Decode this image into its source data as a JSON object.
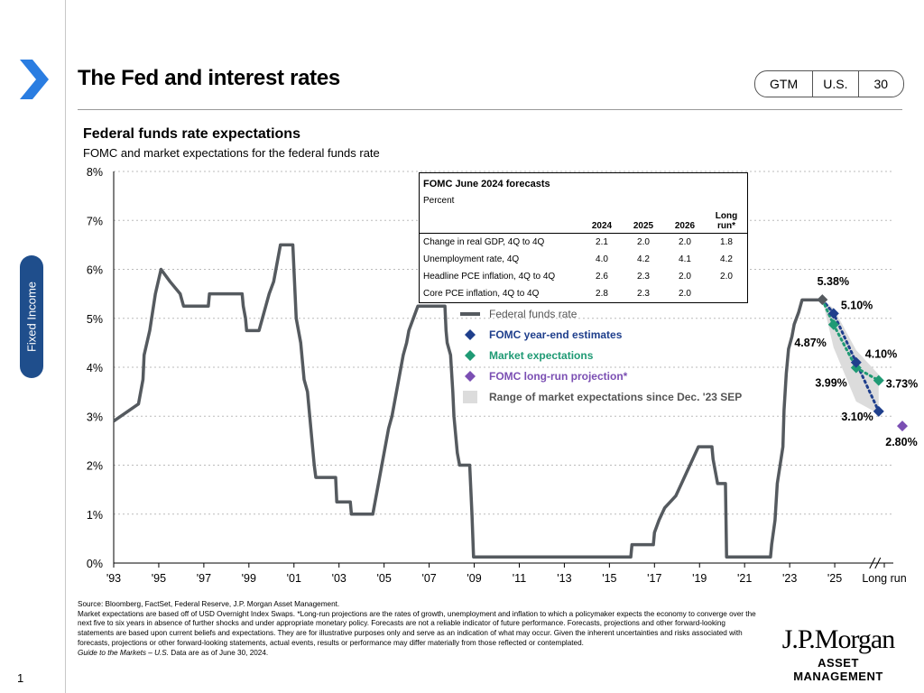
{
  "header": {
    "title": "The Fed and interest rates",
    "tags": [
      "GTM",
      "U.S.",
      "30"
    ],
    "side_tab": "Fixed Income",
    "page_number": "1"
  },
  "colors": {
    "fed_funds": "#555a5f",
    "fomc": "#1f3f8c",
    "market": "#1f9a74",
    "longrun": "#7b4fb3",
    "range": "#dcdcdc",
    "accent": "#1f4e8c",
    "chevron": "#2a7de1"
  },
  "fomc_table": {
    "title": "FOMC June 2024 forecasts",
    "subtitle": "Percent",
    "headers": [
      "2024",
      "2025",
      "2026",
      "Long run*"
    ],
    "rows": [
      {
        "label": "Change in real GDP, 4Q to 4Q",
        "values": [
          "2.1",
          "2.0",
          "2.0",
          "1.8"
        ]
      },
      {
        "label": "Unemployment rate, 4Q",
        "values": [
          "4.0",
          "4.2",
          "4.1",
          "4.2"
        ]
      },
      {
        "label": "Headline PCE inflation, 4Q to 4Q",
        "values": [
          "2.6",
          "2.3",
          "2.0",
          "2.0"
        ]
      },
      {
        "label": "Core PCE inflation, 4Q to 4Q",
        "values": [
          "2.8",
          "2.3",
          "2.0",
          ""
        ]
      }
    ]
  },
  "legend": {
    "fed_funds": "Federal funds rate",
    "fomc": "FOMC year-end estimates",
    "market": "Market expectations",
    "longrun": "FOMC long-run projection*",
    "range": "Range of market expectations since Dec. '23 SEP"
  },
  "chart_data": {
    "type": "line",
    "title": "Federal funds rate expectations",
    "subtitle": "FOMC and market expectations for the federal funds rate",
    "xlabel": "",
    "ylabel": "",
    "ylim": [
      0,
      8
    ],
    "xlim": [
      1993,
      2027.6
    ],
    "y_ticks": [
      "0%",
      "1%",
      "2%",
      "3%",
      "4%",
      "5%",
      "6%",
      "7%",
      "8%"
    ],
    "x_ticks": [
      {
        "x": 1993,
        "label": "'93"
      },
      {
        "x": 1995,
        "label": "'95"
      },
      {
        "x": 1997,
        "label": "'97"
      },
      {
        "x": 1999,
        "label": "'99"
      },
      {
        "x": 2001,
        "label": "'01"
      },
      {
        "x": 2003,
        "label": "'03"
      },
      {
        "x": 2005,
        "label": "'05"
      },
      {
        "x": 2007,
        "label": "'07"
      },
      {
        "x": 2009,
        "label": "'09"
      },
      {
        "x": 2011,
        "label": "'11"
      },
      {
        "x": 2013,
        "label": "'13"
      },
      {
        "x": 2015,
        "label": "'15"
      },
      {
        "x": 2017,
        "label": "'17"
      },
      {
        "x": 2019,
        "label": "'19"
      },
      {
        "x": 2021,
        "label": "'21"
      },
      {
        "x": 2023,
        "label": "'23"
      },
      {
        "x": 2025,
        "label": "'25"
      },
      {
        "x": 2027.2,
        "label": "Long run"
      }
    ],
    "series": [
      {
        "name": "Federal funds rate",
        "points": [
          [
            1993.0,
            2.9
          ],
          [
            1994.1,
            3.25
          ],
          [
            1994.2,
            3.5
          ],
          [
            1994.3,
            3.75
          ],
          [
            1994.35,
            4.25
          ],
          [
            1994.6,
            4.75
          ],
          [
            1994.85,
            5.5
          ],
          [
            1995.1,
            6.0
          ],
          [
            1995.5,
            5.75
          ],
          [
            1995.95,
            5.5
          ],
          [
            1996.1,
            5.25
          ],
          [
            1997.2,
            5.25
          ],
          [
            1997.25,
            5.5
          ],
          [
            1998.7,
            5.5
          ],
          [
            1998.75,
            5.25
          ],
          [
            1998.85,
            5.0
          ],
          [
            1998.9,
            4.75
          ],
          [
            1999.45,
            4.75
          ],
          [
            1999.6,
            5.0
          ],
          [
            1999.75,
            5.25
          ],
          [
            1999.9,
            5.5
          ],
          [
            2000.1,
            5.75
          ],
          [
            2000.2,
            6.0
          ],
          [
            2000.4,
            6.5
          ],
          [
            2000.95,
            6.5
          ],
          [
            2001.05,
            5.5
          ],
          [
            2001.1,
            5.0
          ],
          [
            2001.3,
            4.5
          ],
          [
            2001.4,
            4.0
          ],
          [
            2001.45,
            3.75
          ],
          [
            2001.6,
            3.5
          ],
          [
            2001.7,
            3.0
          ],
          [
            2001.8,
            2.5
          ],
          [
            2001.9,
            2.0
          ],
          [
            2001.97,
            1.75
          ],
          [
            2002.85,
            1.75
          ],
          [
            2002.9,
            1.25
          ],
          [
            2003.5,
            1.25
          ],
          [
            2003.55,
            1.0
          ],
          [
            2004.5,
            1.0
          ],
          [
            2004.6,
            1.25
          ],
          [
            2004.7,
            1.5
          ],
          [
            2004.8,
            1.75
          ],
          [
            2004.9,
            2.0
          ],
          [
            2005.0,
            2.25
          ],
          [
            2005.1,
            2.5
          ],
          [
            2005.2,
            2.75
          ],
          [
            2005.35,
            3.0
          ],
          [
            2005.45,
            3.25
          ],
          [
            2005.55,
            3.5
          ],
          [
            2005.65,
            3.75
          ],
          [
            2005.75,
            4.0
          ],
          [
            2005.85,
            4.25
          ],
          [
            2006.0,
            4.5
          ],
          [
            2006.1,
            4.75
          ],
          [
            2006.3,
            5.0
          ],
          [
            2006.5,
            5.25
          ],
          [
            2007.7,
            5.25
          ],
          [
            2007.75,
            4.75
          ],
          [
            2007.8,
            4.5
          ],
          [
            2007.95,
            4.25
          ],
          [
            2008.05,
            3.5
          ],
          [
            2008.1,
            3.0
          ],
          [
            2008.25,
            2.25
          ],
          [
            2008.35,
            2.0
          ],
          [
            2008.8,
            2.0
          ],
          [
            2008.85,
            1.5
          ],
          [
            2008.9,
            1.0
          ],
          [
            2008.97,
            0.125
          ],
          [
            2015.95,
            0.125
          ],
          [
            2016.0,
            0.375
          ],
          [
            2016.95,
            0.375
          ],
          [
            2017.0,
            0.625
          ],
          [
            2017.2,
            0.875
          ],
          [
            2017.45,
            1.125
          ],
          [
            2017.95,
            1.375
          ],
          [
            2018.2,
            1.625
          ],
          [
            2018.45,
            1.875
          ],
          [
            2018.7,
            2.125
          ],
          [
            2018.95,
            2.375
          ],
          [
            2019.55,
            2.375
          ],
          [
            2019.6,
            2.125
          ],
          [
            2019.7,
            1.875
          ],
          [
            2019.8,
            1.625
          ],
          [
            2020.15,
            1.625
          ],
          [
            2020.2,
            0.125
          ],
          [
            2022.15,
            0.125
          ],
          [
            2022.2,
            0.375
          ],
          [
            2022.35,
            0.875
          ],
          [
            2022.45,
            1.625
          ],
          [
            2022.7,
            2.375
          ],
          [
            2022.75,
            3.125
          ],
          [
            2022.85,
            3.875
          ],
          [
            2022.95,
            4.375
          ],
          [
            2023.1,
            4.625
          ],
          [
            2023.2,
            4.875
          ],
          [
            2023.4,
            5.125
          ],
          [
            2023.55,
            5.375
          ],
          [
            2024.45,
            5.375
          ]
        ]
      },
      {
        "name": "FOMC year-end estimates",
        "points": [
          [
            2024.45,
            5.38
          ],
          [
            2024.95,
            5.1
          ],
          [
            2025.95,
            4.1
          ],
          [
            2026.95,
            3.1
          ]
        ],
        "labels": [
          "5.38%",
          "5.10%",
          "4.10%",
          "3.10%"
        ]
      },
      {
        "name": "Market expectations",
        "points": [
          [
            2024.45,
            5.38
          ],
          [
            2024.95,
            4.87
          ],
          [
            2025.95,
            3.99
          ],
          [
            2026.95,
            3.73
          ]
        ],
        "labels": [
          "",
          "4.87%",
          "3.99%",
          "3.73%"
        ]
      },
      {
        "name": "FOMC long-run projection*",
        "points": [
          [
            2028.0,
            2.8
          ]
        ],
        "labels": [
          "2.80%"
        ]
      },
      {
        "name": "Range of market expectations since Dec. '23 SEP",
        "upper": [
          [
            2024.45,
            5.38
          ],
          [
            2024.95,
            5.2
          ],
          [
            2025.95,
            4.35
          ],
          [
            2026.95,
            3.85
          ]
        ],
        "lower": [
          [
            2024.45,
            5.38
          ],
          [
            2024.95,
            4.4
          ],
          [
            2025.95,
            3.3
          ],
          [
            2026.95,
            3.05
          ]
        ]
      }
    ]
  },
  "footer": {
    "source": "Source: Bloomberg, FactSet, Federal Reserve, J.P. Morgan Asset Management.",
    "note": "Market expectations are based off of USD Overnight Index Swaps. *Long-run projections are the rates of growth, unemployment and inflation to which a policymaker expects the economy to converge over the next five to six years in absence of further shocks and under appropriate monetary policy. Forecasts are not a reliable indicator of future performance. Forecasts, projections and other forward-looking statements are based upon current beliefs and expectations. They are for illustrative purposes only and serve as an indication of what may occur. Given the inherent uncertainties and risks associated with forecasts, projections or other forward-looking statements, actual events, results or performance may differ materially from those reflected or contemplated.",
    "guide_prefix": "Guide to the Markets – U.S.",
    "guide_suffix": " Data are as of June 30, 2024."
  },
  "logo": {
    "line1": "J.P.Morgan",
    "line2": "ASSET MANAGEMENT"
  }
}
